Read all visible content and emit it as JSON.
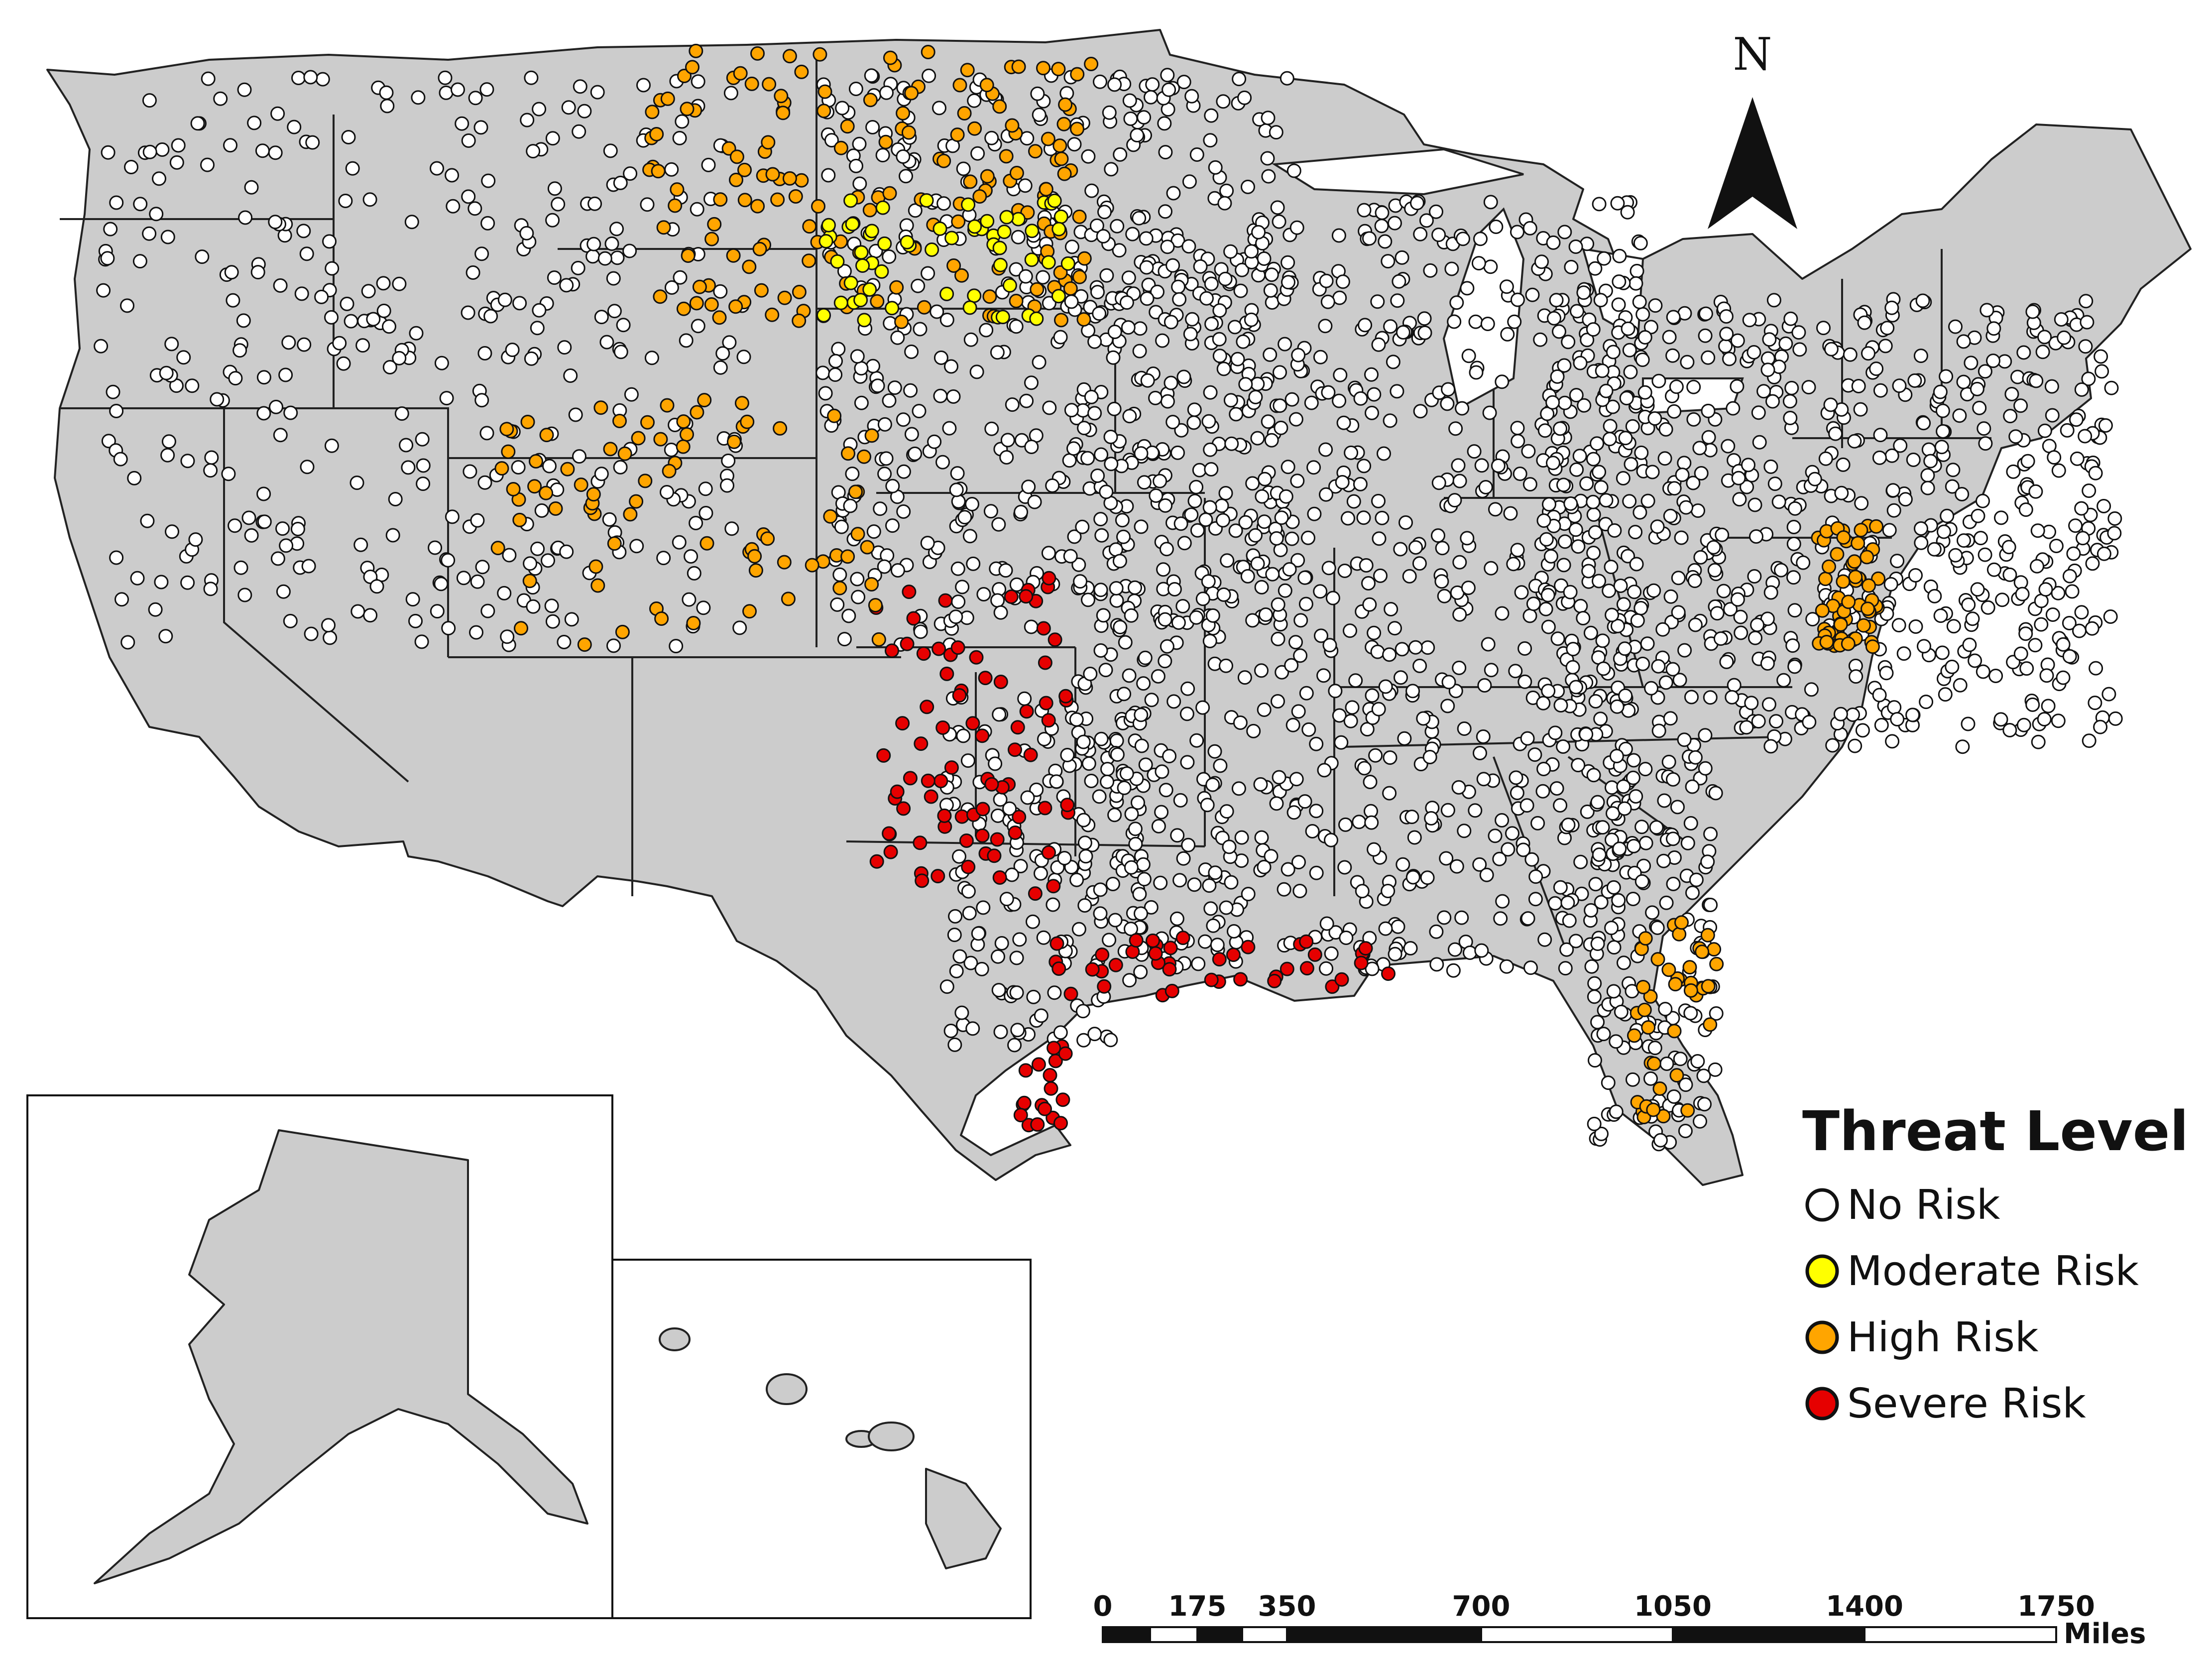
{
  "legend": {
    "title": "Threat Level",
    "items": [
      {
        "label": "No Risk",
        "color": "#ffffff",
        "icon": "white-circle-icon"
      },
      {
        "label": "Moderate Risk",
        "color": "#ffff00",
        "icon": "yellow-circle-icon"
      },
      {
        "label": "High Risk",
        "color": "#ffa500",
        "icon": "orange-circle-icon"
      },
      {
        "label": "Severe Risk",
        "color": "#e60000",
        "icon": "red-circle-icon"
      }
    ]
  },
  "north_arrow": {
    "letter": "N",
    "icon": "north-arrow-icon"
  },
  "scale_bar": {
    "ticks": [
      "0",
      "175",
      "350",
      "700",
      "1050",
      "1400",
      "1750"
    ],
    "unit": "Miles"
  },
  "colors": {
    "land": "#cccccc",
    "border": "#222222",
    "background": "#ffffff"
  }
}
